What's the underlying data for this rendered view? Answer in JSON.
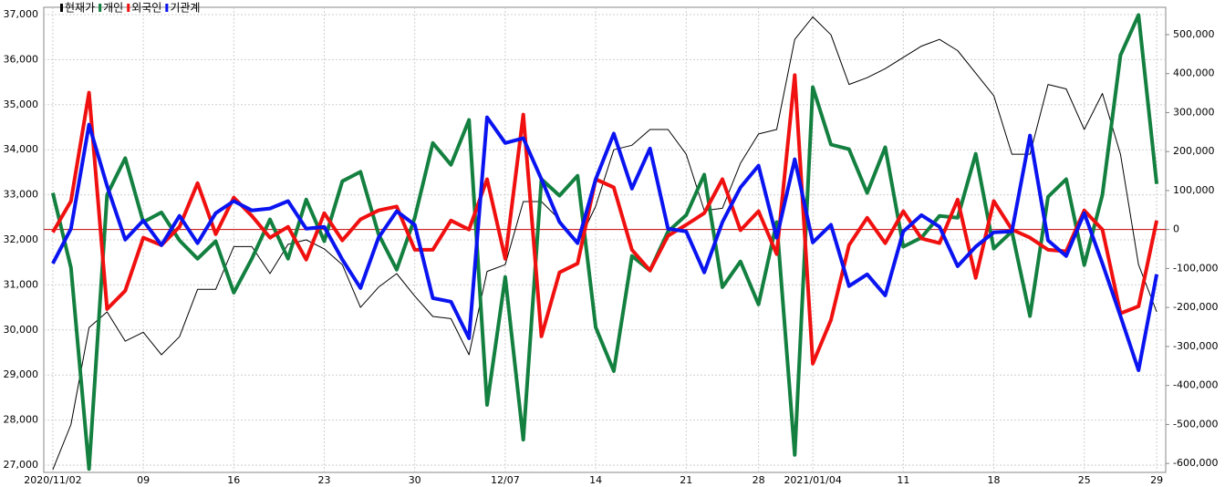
{
  "chart_data": {
    "type": "line",
    "categories": [
      "2020/11/02",
      null,
      null,
      null,
      null,
      "09",
      null,
      null,
      null,
      null,
      "16",
      null,
      null,
      null,
      null,
      "23",
      null,
      null,
      null,
      null,
      "30",
      null,
      null,
      null,
      null,
      "12/07",
      null,
      null,
      null,
      null,
      "14",
      null,
      null,
      null,
      null,
      "21",
      null,
      null,
      null,
      "28",
      null,
      null,
      "2021/01/04",
      null,
      null,
      null,
      null,
      "11",
      null,
      null,
      null,
      null,
      "18",
      null,
      null,
      null,
      null,
      "25",
      null,
      null,
      null,
      "29"
    ],
    "series": [
      {
        "name": "현재가",
        "color": "#000000",
        "axis": "y",
        "values": [
          26900,
          27900,
          30050,
          30400,
          29750,
          29950,
          29450,
          29850,
          30900,
          30900,
          31850,
          31850,
          31250,
          31900,
          32000,
          31800,
          31450,
          30500,
          30950,
          31250,
          30750,
          30300,
          30250,
          29450,
          31300,
          31450,
          32850,
          32850,
          32450,
          31900,
          32750,
          34000,
          34100,
          34450,
          34450,
          33900,
          32650,
          32700,
          33700,
          34350,
          34450,
          36450,
          36950,
          36550,
          35450,
          35600,
          35800,
          36050,
          36300,
          36450,
          36200,
          35700,
          35200,
          33900,
          33900,
          35450,
          35350,
          34450,
          35250,
          33900,
          31450,
          30400
        ]
      },
      {
        "name": "개인",
        "color": "#138040",
        "axis": "y2",
        "values": [
          94000,
          -98000,
          -614000,
          89000,
          183000,
          19000,
          44000,
          -28000,
          -75000,
          -30000,
          -162000,
          -75000,
          26000,
          -75000,
          77000,
          -30000,
          124000,
          148000,
          -12000,
          -103000,
          30000,
          222000,
          166000,
          281000,
          -450000,
          -122000,
          -539000,
          129000,
          87000,
          138000,
          -251000,
          -363000,
          -68000,
          -105000,
          -5000,
          37000,
          141000,
          -148000,
          -82000,
          -192000,
          19000,
          -578000,
          365000,
          218000,
          206000,
          94000,
          211000,
          -44000,
          -21000,
          35000,
          30000,
          194000,
          -49000,
          -5000,
          -222000,
          84000,
          129000,
          -91000,
          89000,
          447000,
          550000,
          117000
        ]
      },
      {
        "name": "외국인",
        "color": "#f01010",
        "axis": "y2",
        "values": [
          -7000,
          73000,
          351000,
          -204000,
          -157000,
          -21000,
          -40000,
          7000,
          119000,
          -12000,
          82000,
          35000,
          -21000,
          7000,
          -77000,
          42000,
          -28000,
          26000,
          49000,
          59000,
          -52000,
          -52000,
          23000,
          0,
          129000,
          -75000,
          295000,
          -274000,
          -110000,
          -87000,
          129000,
          108000,
          -52000,
          -105000,
          -16000,
          12000,
          42000,
          129000,
          -2000,
          47000,
          -63000,
          396000,
          -344000,
          -232000,
          -40000,
          30000,
          -35000,
          47000,
          -23000,
          -35000,
          77000,
          -124000,
          73000,
          0,
          -21000,
          -52000,
          -56000,
          49000,
          0,
          -215000,
          -197000,
          23000
        ]
      },
      {
        "name": "기관계",
        "color": "#0a14f0",
        "axis": "y2",
        "values": [
          -87000,
          2000,
          269000,
          112000,
          -26000,
          23000,
          -40000,
          35000,
          -35000,
          42000,
          73000,
          49000,
          54000,
          73000,
          2000,
          7000,
          -77000,
          -150000,
          -21000,
          47000,
          12000,
          -176000,
          -185000,
          -279000,
          288000,
          222000,
          234000,
          129000,
          19000,
          -35000,
          129000,
          246000,
          105000,
          208000,
          2000,
          -5000,
          -110000,
          19000,
          108000,
          164000,
          -21000,
          180000,
          -33000,
          12000,
          -145000,
          -115000,
          -169000,
          -5000,
          37000,
          7000,
          -94000,
          -44000,
          -7000,
          -5000,
          241000,
          -28000,
          -68000,
          42000,
          -87000,
          -222000,
          -361000,
          -115000
        ]
      }
    ],
    "ylim": [
      26838,
      37162
    ],
    "yticks": [
      {
        "value": 27000,
        "label": "27,000"
      },
      {
        "value": 28000,
        "label": "28,000"
      },
      {
        "value": 29000,
        "label": "29,000"
      },
      {
        "value": 30000,
        "label": "30,000"
      },
      {
        "value": 31000,
        "label": "31,000"
      },
      {
        "value": 32000,
        "label": "32,000"
      },
      {
        "value": 33000,
        "label": "33,000"
      },
      {
        "value": 34000,
        "label": "34,000"
      },
      {
        "value": 35000,
        "label": "35,000"
      },
      {
        "value": 36000,
        "label": "36,000"
      },
      {
        "value": 37000,
        "label": "37,000"
      }
    ],
    "y2lim": [
      -623000,
      570000
    ],
    "y2ticks": [
      {
        "value": -600000,
        "label": "-600,000"
      },
      {
        "value": -500000,
        "label": "-500,000"
      },
      {
        "value": -400000,
        "label": "-400,000"
      },
      {
        "value": -300000,
        "label": "-300,000"
      },
      {
        "value": -200000,
        "label": "-200,000"
      },
      {
        "value": -100000,
        "label": "-100,000"
      },
      0,
      {
        "value": 100000,
        "label": "100,000"
      },
      {
        "value": 200000,
        "label": "200,000"
      },
      {
        "value": 300000,
        "label": "300,000"
      },
      {
        "value": 400000,
        "label": "400,000"
      },
      {
        "value": 500000,
        "label": "500,000"
      }
    ],
    "grid": true,
    "zero_line_color": "#c00000",
    "legend": "top-left"
  }
}
